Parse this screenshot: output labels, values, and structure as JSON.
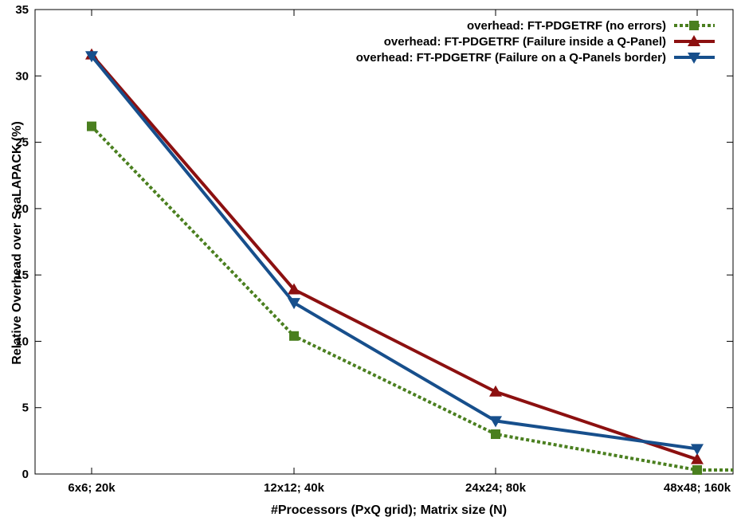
{
  "chart_data": {
    "type": "line",
    "title": "",
    "xlabel": "#Processors (PxQ grid); Matrix size (N)",
    "ylabel": "Relative Overhead over ScaLAPACK (%)",
    "categories": [
      "6x6; 20k",
      "12x12; 40k",
      "24x24; 80k",
      "48x48; 160k"
    ],
    "ylim": [
      0,
      35
    ],
    "yticks": [
      "0",
      "5",
      "10",
      "15",
      "20",
      "25",
      "30",
      "35"
    ],
    "grid": false,
    "legend_position": "top-right",
    "series": [
      {
        "name": "overhead: FT-PDGETRF (no errors)",
        "values": [
          26.2,
          10.4,
          3.0,
          0.3
        ],
        "color": "#4a7f1f",
        "marker": "square",
        "dash": "dotted"
      },
      {
        "name": "overhead: FT-PDGETRF (Failure inside a Q-Panel)",
        "values": [
          31.6,
          13.9,
          6.2,
          1.1
        ],
        "color": "#8c1010",
        "marker": "triangle-up",
        "dash": "solid"
      },
      {
        "name": "overhead: FT-PDGETRF (Failure on a Q-Panels border)",
        "values": [
          31.5,
          12.9,
          4.0,
          1.9
        ],
        "color": "#174f8c",
        "marker": "triangle-down",
        "dash": "solid"
      }
    ]
  }
}
